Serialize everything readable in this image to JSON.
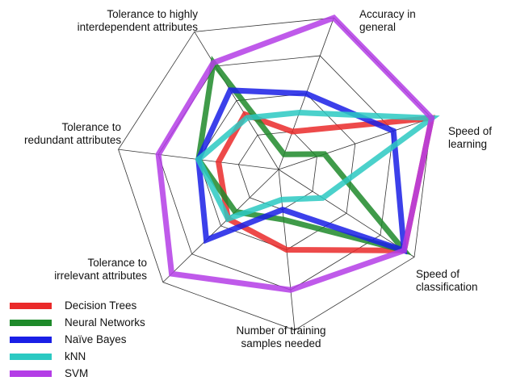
{
  "chart_data": {
    "type": "radar",
    "axes": [
      "Accuracy in general",
      "Speed of learning",
      "Speed of classification",
      "Number of training samples needed",
      "Tolerance to irrelevant attributes",
      "Tolerance to redundant attributes",
      "Tolerance to highly interdependent attributes"
    ],
    "axis_label_lines": [
      [
        "Accuracy in",
        "general"
      ],
      [
        "Speed of",
        "learning"
      ],
      [
        "Speed of",
        "classification"
      ],
      [
        "Number of training",
        "samples needed"
      ],
      [
        "Tolerance to",
        "irrelevant attributes"
      ],
      [
        "Tolerance to",
        "redundant attributes"
      ],
      [
        "Tolerance to highly",
        "interdependent attributes"
      ]
    ],
    "rings": 4,
    "scale_max": 4,
    "series": [
      {
        "name": "Decision Trees",
        "color": "#ea2a2a",
        "values": [
          1.0,
          4.0,
          3.7,
          2.0,
          1.75,
          1.5,
          1.6
        ]
      },
      {
        "name": "Neural Networks",
        "color": "#1e8a2a",
        "values": [
          0.4,
          1.2,
          3.7,
          1.25,
          1.5,
          2.0,
          3.1
        ]
      },
      {
        "name": "Naïve Bayes",
        "color": "#1a1fe6",
        "values": [
          2.0,
          3.0,
          3.7,
          1.0,
          2.5,
          2.0,
          2.3
        ]
      },
      {
        "name": "kNN",
        "color": "#2bc9c2",
        "values": [
          1.5,
          4.0,
          1.3,
          0.75,
          1.75,
          2.0,
          1.5
        ]
      },
      {
        "name": "SVM",
        "color": "#b43de6",
        "values": [
          4.0,
          4.0,
          3.7,
          3.0,
          3.7,
          3.0,
          3.1
        ]
      }
    ],
    "legend_position": "bottom-left"
  }
}
